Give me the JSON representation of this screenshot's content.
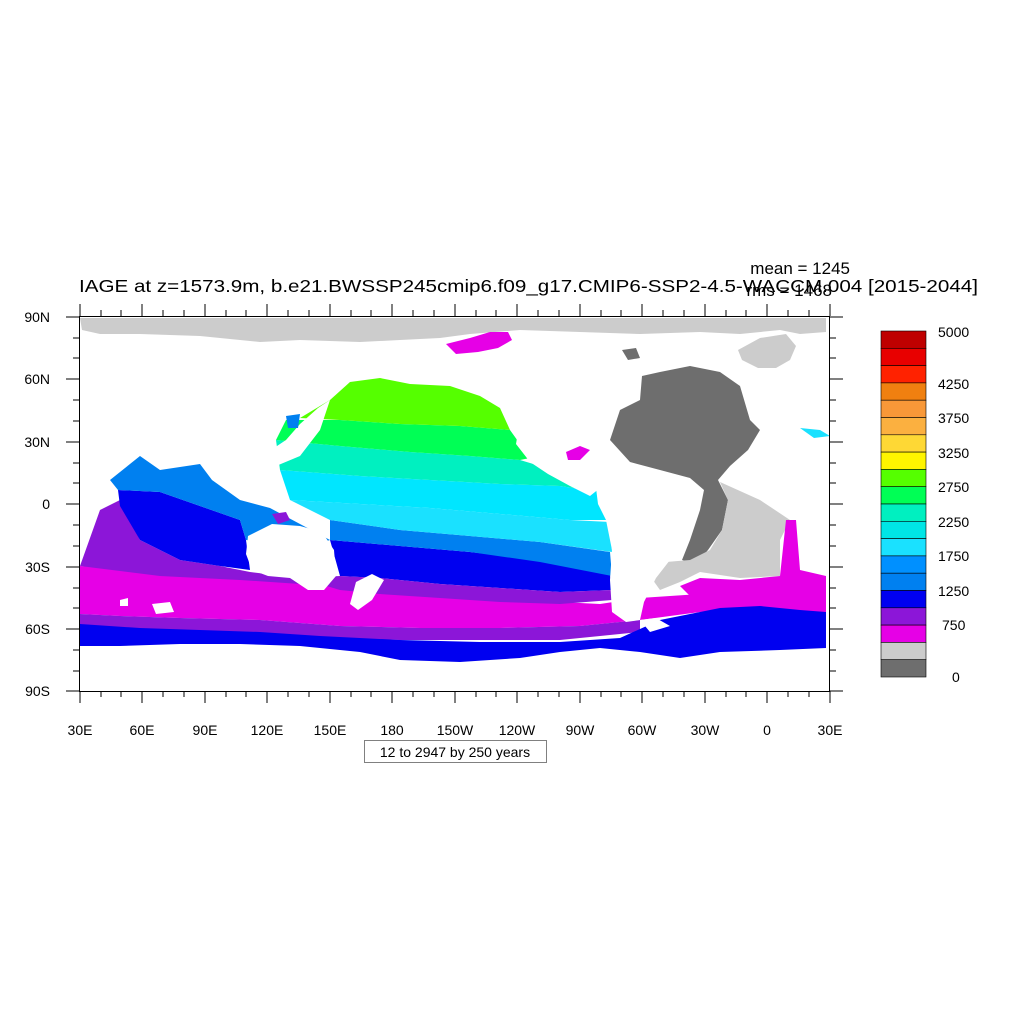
{
  "title": {
    "main": "IAGE at z=1573.9m, b.e21.BWSSP245cmip6.f09_g17.CMIP6-SSP2-4.5-WACCM.004 [2015-2044]",
    "mean": "mean = 1245",
    "rms": "rms = 1468"
  },
  "footnote": "12 to 2947 by 250 years",
  "axes": {
    "x_ticks": [
      "30E",
      "60E",
      "90E",
      "120E",
      "150E",
      "180",
      "150W",
      "120W",
      "90W",
      "60W",
      "30W",
      "0",
      "30E"
    ],
    "y_ticks": [
      "90N",
      "60N",
      "30N",
      "0",
      "30S",
      "60S",
      "90S"
    ]
  },
  "colorbar": {
    "labels": [
      "5000",
      "4250",
      "3750",
      "3250",
      "2750",
      "2250",
      "1750",
      "1250",
      "750",
      "0"
    ],
    "colors": [
      "#bf0000",
      "#e80000",
      "#ff2200",
      "#f08010",
      "#f89838",
      "#fbb040",
      "#fed835",
      "#fff500",
      "#55ff00",
      "#00ff55",
      "#00f0c0",
      "#00e6e6",
      "#1ae1ff",
      "#0090ff",
      "#0080f0",
      "#0000f0",
      "#8c16d8",
      "#e600e6",
      "#cccccc",
      "#6e6e6e"
    ]
  },
  "map_colors": {
    "ocean_zones": {
      "below_750": "#e600e6",
      "750_1000": "#8c16d8",
      "1000_1250": "#0000f0",
      "1250_1500": "#0080f0",
      "1500_1750": "#1ae1ff",
      "1750_2000": "#00e6ff",
      "2000_2250": "#00f0c0",
      "2250_2500": "#00ff55",
      "2500_2750": "#55ff00"
    },
    "land": "#ffffff",
    "deep_ocean_atlantic": "#6e6e6e",
    "light_gray_region": "#cccccc"
  }
}
